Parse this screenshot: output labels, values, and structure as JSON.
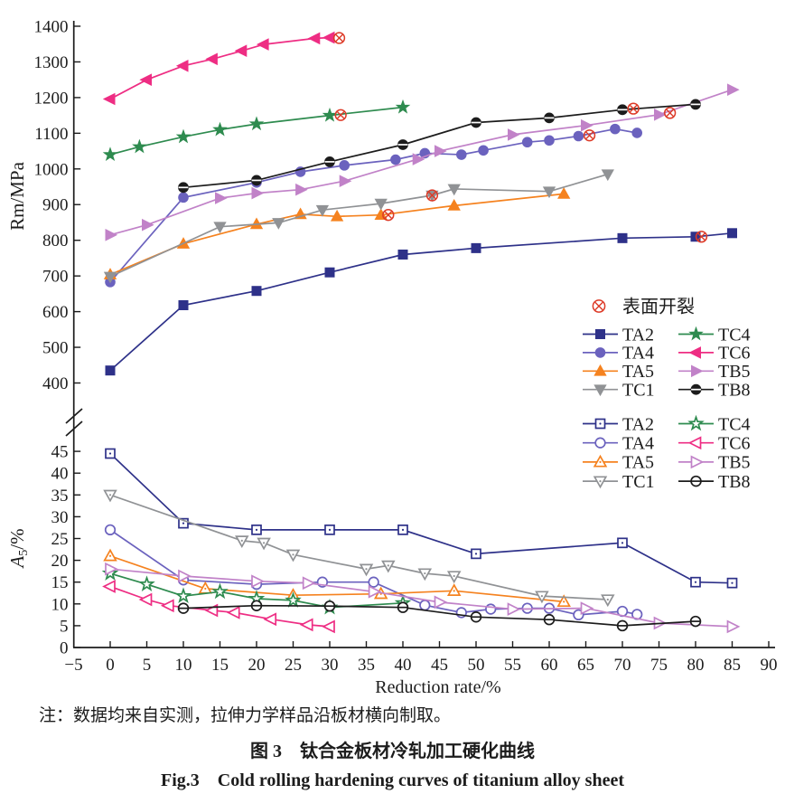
{
  "figure": {
    "note": "注：数据均来自实测，拉伸力学样品沿板材横向制取。",
    "caption_zh": "图 3　钛合金板材冷轧加工硬化曲线",
    "caption_en": "Fig.3　Cold rolling hardening curves of titanium alloy sheet"
  },
  "chart_data": {
    "type": "line",
    "xlabel": "Reduction rate/%",
    "xlim": [
      -5,
      90
    ],
    "xtick_values": [
      -5,
      0,
      5,
      10,
      15,
      20,
      25,
      30,
      35,
      40,
      45,
      50,
      55,
      60,
      65,
      70,
      75,
      80,
      85,
      90
    ],
    "xtick_labels": [
      "−5",
      "0",
      "5",
      "10",
      "15",
      "20",
      "25",
      "30",
      "35",
      "40",
      "45",
      "50",
      "55",
      "60",
      "65",
      "70",
      "75",
      "80",
      "85",
      "90"
    ],
    "crack_legend": {
      "symbol": "circle-x-icon",
      "label": "表面开裂",
      "color": "#dd3a27"
    },
    "legend_columns": [
      [
        "TA2",
        "TA4",
        "TA5",
        "TC1"
      ],
      [
        "TC4",
        "TC6",
        "TB5",
        "TB8"
      ]
    ],
    "panels": [
      {
        "id": "rm",
        "ylabel": "Rm/MPa",
        "ylim": [
          400,
          1400
        ],
        "yticks": [
          400,
          500,
          600,
          700,
          800,
          900,
          1000,
          1100,
          1200,
          1300,
          1400
        ],
        "marker_style": "filled",
        "series": [
          {
            "name": "TA2",
            "marker": "square",
            "color": "#2e3189",
            "points": [
              [
                0,
                435
              ],
              [
                10,
                618
              ],
              [
                20,
                658
              ],
              [
                30,
                710
              ],
              [
                40,
                760
              ],
              [
                50,
                778
              ],
              [
                70,
                806
              ],
              [
                80,
                810
              ],
              [
                85,
                820
              ]
            ],
            "crack": [
              80.8,
              810
            ]
          },
          {
            "name": "TA4",
            "marker": "circle",
            "color": "#6b62be",
            "points": [
              [
                0,
                683
              ],
              [
                10,
                920
              ],
              [
                20,
                962
              ],
              [
                26,
                992
              ],
              [
                32,
                1010
              ],
              [
                39,
                1026
              ],
              [
                43,
                1044
              ],
              [
                48,
                1040
              ],
              [
                51,
                1052
              ],
              [
                57,
                1075
              ],
              [
                60,
                1080
              ],
              [
                64,
                1092
              ],
              [
                69,
                1112
              ],
              [
                72,
                1101
              ]
            ],
            "crack": [
              65.5,
              1094
            ]
          },
          {
            "name": "TA5",
            "marker": "triangle-up",
            "color": "#f5821f",
            "points": [
              [
                0,
                704
              ],
              [
                10,
                790
              ],
              [
                20,
                845
              ],
              [
                26,
                873
              ],
              [
                31,
                867
              ],
              [
                37,
                871
              ],
              [
                47,
                897
              ],
              [
                62,
                930
              ]
            ],
            "crack": [
              38,
              871
            ]
          },
          {
            "name": "TC1",
            "marker": "triangle-down",
            "color": "#909295",
            "points": [
              [
                0,
                698
              ],
              [
                15,
                838
              ],
              [
                23,
                849
              ],
              [
                29,
                885
              ],
              [
                37,
                903
              ],
              [
                44,
                926
              ],
              [
                47,
                944
              ],
              [
                60,
                937
              ],
              [
                68,
                985
              ]
            ],
            "crack": [
              44,
              926
            ]
          },
          {
            "name": "TC4",
            "marker": "star",
            "color": "#2e8b4f",
            "points": [
              [
                0,
                1040
              ],
              [
                4,
                1062
              ],
              [
                10,
                1090
              ],
              [
                15,
                1110
              ],
              [
                20,
                1126
              ],
              [
                30,
                1150
              ],
              [
                40,
                1173
              ]
            ],
            "crack": [
              31.5,
              1151
            ]
          },
          {
            "name": "TC6",
            "marker": "triangle-left",
            "color": "#ee2d83",
            "points": [
              [
                0,
                1196
              ],
              [
                5,
                1250
              ],
              [
                10,
                1289
              ],
              [
                14,
                1308
              ],
              [
                18,
                1331
              ],
              [
                21,
                1349
              ],
              [
                28,
                1366
              ],
              [
                30,
                1368
              ]
            ],
            "crack": [
              31.3,
              1367
            ]
          },
          {
            "name": "TB5",
            "marker": "triangle-right",
            "color": "#c182c8",
            "points": [
              [
                0,
                815
              ],
              [
                5,
                843
              ],
              [
                15,
                918
              ],
              [
                20,
                932
              ],
              [
                26,
                942
              ],
              [
                32,
                966
              ],
              [
                42,
                1027
              ],
              [
                45,
                1050
              ],
              [
                55,
                1096
              ],
              [
                65,
                1122
              ],
              [
                75,
                1152
              ],
              [
                85,
                1222
              ]
            ],
            "crack": [
              76.5,
              1157
            ]
          },
          {
            "name": "TB8",
            "marker": "circle-line",
            "color": "#1c1c1c",
            "points": [
              [
                10,
                948
              ],
              [
                20,
                968
              ],
              [
                30,
                1020
              ],
              [
                40,
                1068
              ],
              [
                50,
                1130
              ],
              [
                60,
                1143
              ],
              [
                70,
                1166
              ],
              [
                80,
                1181
              ]
            ],
            "crack": [
              71.5,
              1169
            ]
          }
        ]
      },
      {
        "id": "a5",
        "ylabel": "A5/%",
        "ylabel_parts": {
          "main": "A",
          "sub": "5",
          "rest": "/%"
        },
        "ylim": [
          0,
          45
        ],
        "yticks": [
          0,
          5,
          10,
          15,
          20,
          25,
          30,
          35,
          40,
          45
        ],
        "marker_style": "open",
        "series": [
          {
            "name": "TA2",
            "marker": "square",
            "color": "#2e3189",
            "points": [
              [
                0,
                44.5
              ],
              [
                10,
                28.5
              ],
              [
                20,
                27
              ],
              [
                30,
                27
              ],
              [
                40,
                27
              ],
              [
                50,
                21.5
              ],
              [
                70,
                24
              ],
              [
                80,
                15
              ],
              [
                85,
                14.8
              ]
            ]
          },
          {
            "name": "TA4",
            "marker": "circle",
            "color": "#6b62be",
            "points": [
              [
                0,
                27
              ],
              [
                10,
                15.5
              ],
              [
                20,
                14.5
              ],
              [
                29,
                15
              ],
              [
                36,
                15
              ],
              [
                43,
                9.7
              ],
              [
                48,
                8
              ],
              [
                52,
                8.8
              ],
              [
                57,
                9
              ],
              [
                60,
                9
              ],
              [
                64,
                7.5
              ],
              [
                70,
                8.3
              ],
              [
                72,
                7.6
              ]
            ]
          },
          {
            "name": "TA5",
            "marker": "triangle-up",
            "color": "#f5821f",
            "points": [
              [
                0,
                21
              ],
              [
                13,
                13.5
              ],
              [
                25,
                12
              ],
              [
                37,
                12.3
              ],
              [
                47,
                13
              ],
              [
                62,
                10.5
              ]
            ]
          },
          {
            "name": "TC1",
            "marker": "triangle-down",
            "color": "#909295",
            "points": [
              [
                0,
                35
              ],
              [
                18,
                24.5
              ],
              [
                21,
                24
              ],
              [
                25,
                21.3
              ],
              [
                35,
                18
              ],
              [
                38,
                18.8
              ],
              [
                43,
                17
              ],
              [
                47,
                16.4
              ],
              [
                59,
                11.8
              ],
              [
                68,
                11
              ]
            ]
          },
          {
            "name": "TC4",
            "marker": "star",
            "color": "#2e8b4f",
            "points": [
              [
                0,
                17
              ],
              [
                5,
                14.5
              ],
              [
                10,
                11.8
              ],
              [
                15,
                12.8
              ],
              [
                20,
                11.2
              ],
              [
                25,
                10.8
              ],
              [
                30,
                9.2
              ],
              [
                40,
                10.2
              ]
            ]
          },
          {
            "name": "TC6",
            "marker": "triangle-left",
            "color": "#ee2d83",
            "points": [
              [
                0,
                14
              ],
              [
                5,
                11
              ],
              [
                8,
                9.6
              ],
              [
                14,
                8.5
              ],
              [
                17,
                8
              ],
              [
                22,
                6.5
              ],
              [
                27,
                5.2
              ],
              [
                30,
                4.8
              ]
            ]
          },
          {
            "name": "TB5",
            "marker": "triangle-right",
            "color": "#c182c8",
            "points": [
              [
                0,
                18
              ],
              [
                10,
                16.4
              ],
              [
                20,
                15.2
              ],
              [
                27,
                14.8
              ],
              [
                36,
                12.8
              ],
              [
                45,
                10.4
              ],
              [
                55,
                8.8
              ],
              [
                65,
                9
              ],
              [
                75,
                5.6
              ],
              [
                85,
                4.8
              ]
            ]
          },
          {
            "name": "TB8",
            "marker": "circle-line",
            "color": "#1c1c1c",
            "points": [
              [
                10,
                9
              ],
              [
                20,
                9.6
              ],
              [
                30,
                9.5
              ],
              [
                40,
                9.2
              ],
              [
                50,
                7
              ],
              [
                60,
                6.4
              ],
              [
                70,
                5
              ],
              [
                80,
                6
              ]
            ]
          }
        ]
      }
    ]
  }
}
